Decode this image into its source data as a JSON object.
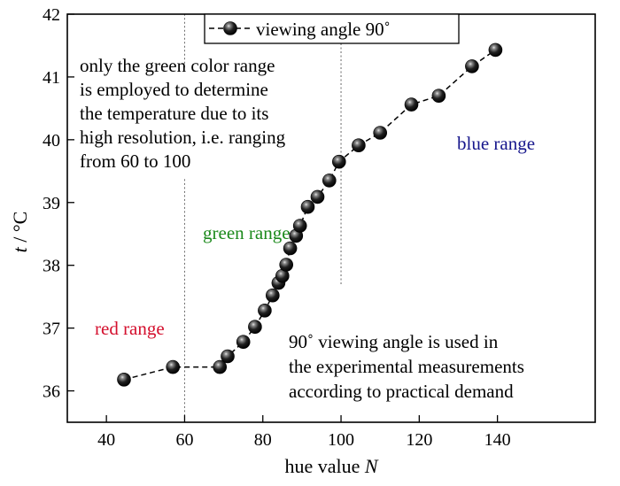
{
  "chart_data": {
    "type": "scatter",
    "xlabel": "hue value",
    "xlabel_var": "N",
    "ylabel_var": "t",
    "ylabel_unit": " / °C",
    "xlim": [
      30,
      165
    ],
    "ylim": [
      35.5,
      42
    ],
    "xticks": [
      40,
      60,
      80,
      100,
      120,
      140
    ],
    "yticks": [
      36,
      37,
      38,
      39,
      40,
      41,
      42
    ],
    "grid": false,
    "legend_position": "top",
    "series": [
      {
        "name": "viewing angle 90˚",
        "marker": "sphere",
        "line": "dashed",
        "color": "#000000",
        "x": [
          44.5,
          57,
          69,
          71,
          75,
          78,
          80.5,
          82.5,
          84,
          85,
          86,
          87,
          88.5,
          89.5,
          91.5,
          94,
          97,
          99.5,
          104.5,
          110,
          118,
          125,
          133.5,
          139.5
        ],
        "y": [
          36.18,
          36.38,
          36.38,
          36.55,
          36.78,
          37.02,
          37.28,
          37.52,
          37.72,
          37.83,
          38.01,
          38.27,
          38.47,
          38.63,
          38.93,
          39.09,
          39.35,
          39.65,
          39.91,
          40.11,
          40.56,
          40.7,
          41.17,
          41.43
        ]
      }
    ],
    "vertical_markers": [
      {
        "x": 60,
        "ranges": [
          [
            35.6,
            39.4
          ],
          [
            41.15,
            42
          ]
        ]
      },
      {
        "x": 100,
        "ranges": [
          [
            37.7,
            41.6
          ]
        ]
      }
    ],
    "regions": [
      {
        "label": "red range",
        "color": "#d4102e"
      },
      {
        "label": "green range",
        "color": "#1c8a1c"
      },
      {
        "label": "blue range",
        "color": "#16168c"
      }
    ],
    "annotations": [
      {
        "lines": [
          "only the green color range",
          "is employed to determine",
          "the temperature due to its",
          "high resolution, i.e. ranging",
          "from 60 to 100"
        ]
      },
      {
        "lines": [
          "90˚ viewing angle is used in",
          "the experimental measurements",
          "according to practical demand"
        ]
      }
    ]
  }
}
